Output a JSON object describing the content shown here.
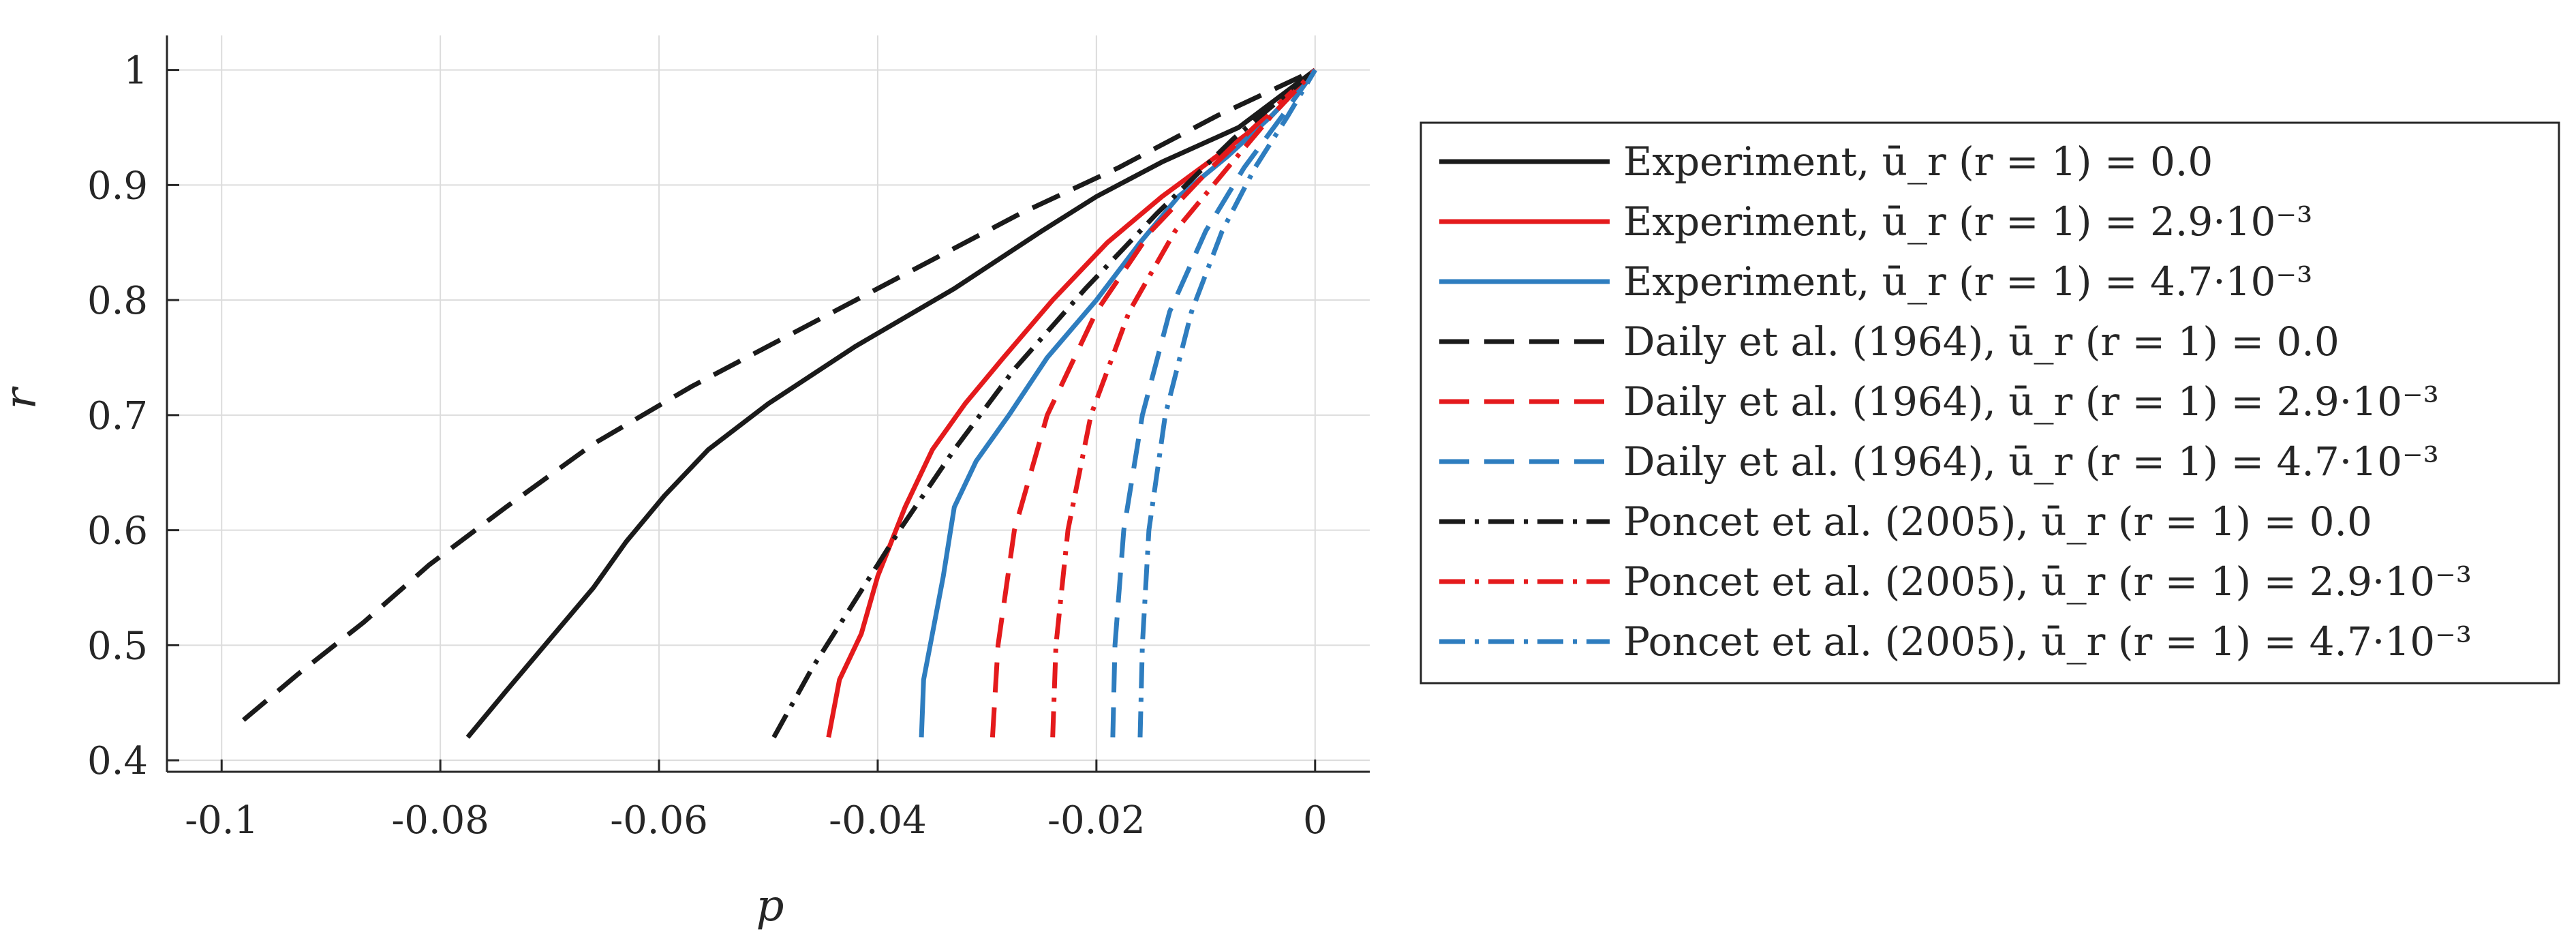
{
  "chart_data": {
    "type": "line",
    "title": "",
    "xlabel": "p",
    "ylabel": "r",
    "xlim": [
      -0.105,
      0.005
    ],
    "ylim": [
      0.39,
      1.03
    ],
    "xticks": [
      -0.1,
      -0.08,
      -0.06,
      -0.04,
      -0.02,
      0
    ],
    "xtick_labels": [
      "-0.1",
      "-0.08",
      "-0.06",
      "-0.04",
      "-0.02",
      "0"
    ],
    "yticks": [
      0.4,
      0.5,
      0.6,
      0.7,
      0.8,
      0.9,
      1
    ],
    "ytick_labels": [
      "0.4",
      "0.5",
      "0.6",
      "0.7",
      "0.8",
      "0.9",
      "1"
    ],
    "grid": true,
    "legend_position": "outside-right",
    "colors": {
      "black": "#1a1a1a",
      "red": "#e41a1c",
      "blue": "#2e7dbf"
    },
    "series": [
      {
        "name": "Experiment, ū_r (r = 1) = 0.0",
        "color": "#1a1a1a",
        "style": "solid",
        "points": [
          [
            -0.0775,
            0.42
          ],
          [
            -0.074,
            0.46
          ],
          [
            -0.07,
            0.505
          ],
          [
            -0.066,
            0.55
          ],
          [
            -0.063,
            0.59
          ],
          [
            -0.0595,
            0.63
          ],
          [
            -0.0555,
            0.67
          ],
          [
            -0.05,
            0.71
          ],
          [
            -0.042,
            0.76
          ],
          [
            -0.033,
            0.81
          ],
          [
            -0.025,
            0.86
          ],
          [
            -0.02,
            0.89
          ],
          [
            -0.014,
            0.92
          ],
          [
            -0.007,
            0.95
          ],
          [
            0,
            1.0
          ]
        ]
      },
      {
        "name": "Experiment, ū_r (r = 1) = 2.9·10⁻³",
        "color": "#e41a1c",
        "style": "solid",
        "points": [
          [
            -0.0445,
            0.42
          ],
          [
            -0.0435,
            0.47
          ],
          [
            -0.0415,
            0.51
          ],
          [
            -0.04,
            0.56
          ],
          [
            -0.0375,
            0.62
          ],
          [
            -0.035,
            0.67
          ],
          [
            -0.032,
            0.71
          ],
          [
            -0.0285,
            0.75
          ],
          [
            -0.024,
            0.8
          ],
          [
            -0.019,
            0.85
          ],
          [
            -0.014,
            0.89
          ],
          [
            -0.009,
            0.925
          ],
          [
            -0.004,
            0.96
          ],
          [
            0,
            1.0
          ]
        ]
      },
      {
        "name": "Experiment, ū_r (r = 1) = 4.7·10⁻³",
        "color": "#2e7dbf",
        "style": "solid",
        "points": [
          [
            -0.036,
            0.42
          ],
          [
            -0.0358,
            0.47
          ],
          [
            -0.035,
            0.51
          ],
          [
            -0.034,
            0.56
          ],
          [
            -0.033,
            0.62
          ],
          [
            -0.031,
            0.66
          ],
          [
            -0.028,
            0.7
          ],
          [
            -0.0245,
            0.75
          ],
          [
            -0.02,
            0.8
          ],
          [
            -0.016,
            0.85
          ],
          [
            -0.0125,
            0.89
          ],
          [
            -0.008,
            0.925
          ],
          [
            -0.004,
            0.96
          ],
          [
            0,
            1.0
          ]
        ]
      },
      {
        "name": "Daily et al. (1964), ū_r (r = 1) = 0.0",
        "color": "#1a1a1a",
        "style": "dashed",
        "points": [
          [
            -0.098,
            0.435
          ],
          [
            -0.093,
            0.475
          ],
          [
            -0.087,
            0.52
          ],
          [
            -0.081,
            0.57
          ],
          [
            -0.074,
            0.62
          ],
          [
            -0.066,
            0.675
          ],
          [
            -0.057,
            0.725
          ],
          [
            -0.047,
            0.775
          ],
          [
            -0.037,
            0.825
          ],
          [
            -0.027,
            0.875
          ],
          [
            -0.018,
            0.915
          ],
          [
            -0.009,
            0.96
          ],
          [
            0,
            1.0
          ]
        ]
      },
      {
        "name": "Daily et al. (1964), ū_r (r = 1) = 2.9·10⁻³",
        "color": "#e41a1c",
        "style": "dashed",
        "points": [
          [
            -0.0295,
            0.42
          ],
          [
            -0.029,
            0.5
          ],
          [
            -0.0275,
            0.6
          ],
          [
            -0.0245,
            0.7
          ],
          [
            -0.02,
            0.79
          ],
          [
            -0.015,
            0.86
          ],
          [
            -0.0095,
            0.915
          ],
          [
            -0.0045,
            0.96
          ],
          [
            0,
            1.0
          ]
        ]
      },
      {
        "name": "Daily et al. (1964), ū_r (r = 1) = 4.7·10⁻³",
        "color": "#2e7dbf",
        "style": "dashed",
        "points": [
          [
            -0.0185,
            0.42
          ],
          [
            -0.0183,
            0.5
          ],
          [
            -0.0175,
            0.6
          ],
          [
            -0.0158,
            0.7
          ],
          [
            -0.0133,
            0.79
          ],
          [
            -0.01,
            0.86
          ],
          [
            -0.0065,
            0.915
          ],
          [
            -0.003,
            0.96
          ],
          [
            0,
            1.0
          ]
        ]
      },
      {
        "name": "Poncet et al. (2005), ū_r (r = 1) = 0.0",
        "color": "#1a1a1a",
        "style": "dashdot",
        "points": [
          [
            -0.0495,
            0.42
          ],
          [
            -0.046,
            0.48
          ],
          [
            -0.042,
            0.54
          ],
          [
            -0.038,
            0.6
          ],
          [
            -0.033,
            0.67
          ],
          [
            -0.0275,
            0.74
          ],
          [
            -0.021,
            0.81
          ],
          [
            -0.0145,
            0.875
          ],
          [
            -0.0075,
            0.94
          ],
          [
            0,
            1.0
          ]
        ]
      },
      {
        "name": "Poncet et al. (2005), ū_r (r = 1) = 2.9·10⁻³",
        "color": "#e41a1c",
        "style": "dashdot",
        "points": [
          [
            -0.024,
            0.42
          ],
          [
            -0.0237,
            0.5
          ],
          [
            -0.0226,
            0.6
          ],
          [
            -0.0205,
            0.7
          ],
          [
            -0.017,
            0.79
          ],
          [
            -0.0128,
            0.86
          ],
          [
            -0.008,
            0.915
          ],
          [
            -0.004,
            0.96
          ],
          [
            0,
            1.0
          ]
        ]
      },
      {
        "name": "Poncet et al. (2005), ū_r (r = 1) = 4.7·10⁻³",
        "color": "#2e7dbf",
        "style": "dashdot",
        "points": [
          [
            -0.016,
            0.42
          ],
          [
            -0.0158,
            0.5
          ],
          [
            -0.0152,
            0.6
          ],
          [
            -0.0137,
            0.7
          ],
          [
            -0.0113,
            0.79
          ],
          [
            -0.0085,
            0.86
          ],
          [
            -0.0055,
            0.915
          ],
          [
            -0.0025,
            0.96
          ],
          [
            0,
            1.0
          ]
        ]
      }
    ]
  }
}
